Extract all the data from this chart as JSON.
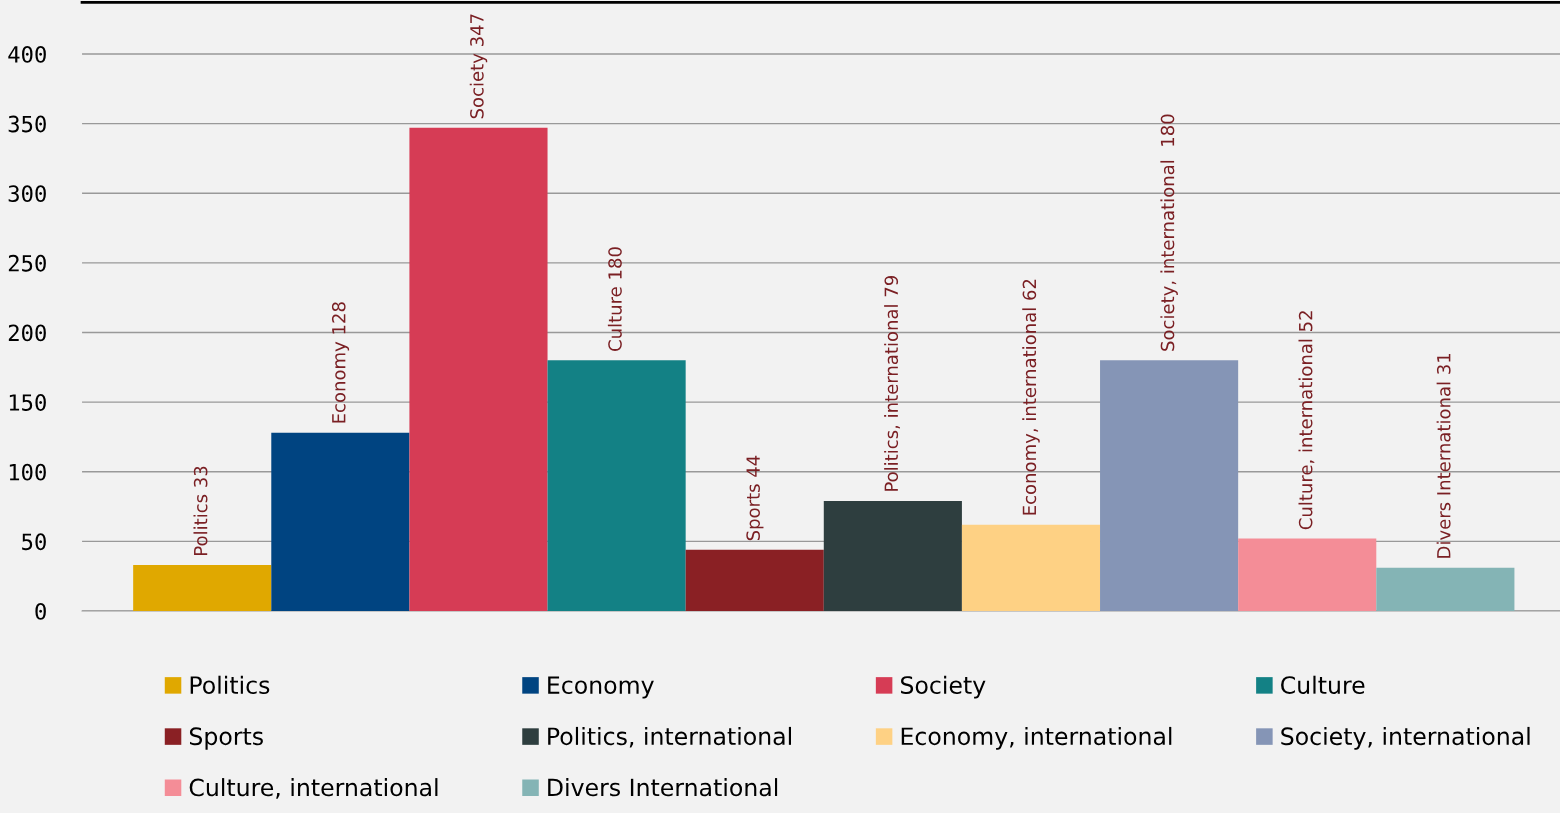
{
  "chart_data": {
    "type": "bar",
    "categories": [
      null
    ],
    "ylim": [
      0,
      437
    ],
    "yticks": [
      0,
      50,
      100,
      150,
      200,
      250,
      300,
      350,
      400
    ],
    "grid": "y",
    "legend": "bottom",
    "series": [
      {
        "name": "Politics",
        "color": "#e0a800",
        "values": [
          33
        ],
        "value_labels": [
          "Politics 33"
        ]
      },
      {
        "name": "Economy",
        "color": "#004481",
        "values": [
          128
        ],
        "value_labels": [
          "Economy 128"
        ]
      },
      {
        "name": "Society",
        "color": "#d63c55",
        "values": [
          347
        ],
        "value_labels": [
          "Society 347"
        ]
      },
      {
        "name": "Culture",
        "color": "#138185",
        "values": [
          180
        ],
        "value_labels": [
          "Culture 180"
        ]
      },
      {
        "name": "Sports",
        "color": "#8a2024",
        "values": [
          44
        ],
        "value_labels": [
          "Sports 44"
        ]
      },
      {
        "name": "Politics, international",
        "color": "#2e3e3f",
        "values": [
          79
        ],
        "value_labels": [
          "Politics, international 79"
        ]
      },
      {
        "name": "Economy, international",
        "color": "#fed184",
        "values": [
          62
        ],
        "value_labels": [
          "Economy, international 62"
        ]
      },
      {
        "name": "Society, international",
        "color": "#8595b6",
        "values": [
          180
        ],
        "value_labels": [
          "Society, international  180"
        ]
      },
      {
        "name": "Culture, international",
        "color": "#f48d97",
        "values": [
          52
        ],
        "value_labels": [
          "Culture, international 52"
        ]
      },
      {
        "name": "Divers International",
        "color": "#84b4b5",
        "values": [
          31
        ],
        "value_labels": [
          "Divers International 31"
        ]
      }
    ]
  }
}
